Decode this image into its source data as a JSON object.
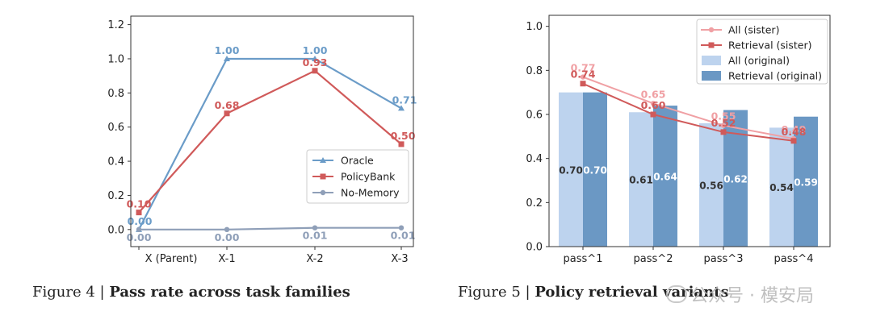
{
  "chart_data": [
    {
      "type": "line",
      "x": [
        "X (Parent)",
        "X-1",
        "X-2",
        "X-3"
      ],
      "ylim": [
        -0.1,
        1.25
      ],
      "yticks": [
        0.0,
        0.2,
        0.4,
        0.6,
        0.8,
        1.0,
        1.2
      ],
      "grid": false,
      "legend": "lower-right",
      "series": [
        {
          "name": "Oracle",
          "color": "#6b9cc8",
          "marker": "triangle",
          "values": [
            0.0,
            1.0,
            1.0,
            0.71
          ],
          "labels": [
            "0.00",
            "1.00",
            "1.00",
            "0.71"
          ]
        },
        {
          "name": "PolicyBank",
          "color": "#d05a5a",
          "marker": "square",
          "values": [
            0.1,
            0.68,
            0.93,
            0.5
          ],
          "labels": [
            "0.10",
            "0.68",
            "0.93",
            "0.50"
          ]
        },
        {
          "name": "No-Memory",
          "color": "#8f9fb8",
          "marker": "circle",
          "values": [
            0.0,
            0.0,
            0.01,
            0.01
          ],
          "labels": [
            "0.00",
            "0.00",
            "0.01",
            "0.01"
          ]
        }
      ]
    },
    {
      "type": "bar",
      "categories": [
        "pass^1",
        "pass^2",
        "pass^3",
        "pass^4"
      ],
      "ylim": [
        0.0,
        1.05
      ],
      "yticks": [
        0.0,
        0.2,
        0.4,
        0.6,
        0.8,
        1.0
      ],
      "grid": false,
      "legend": "top-right",
      "bar_series": [
        {
          "name": "All (original)",
          "color": "#bdd3ee",
          "values": [
            0.7,
            0.61,
            0.56,
            0.54
          ],
          "labels": [
            "0.70",
            "0.61",
            "0.56",
            "0.54"
          ]
        },
        {
          "name": "Retrieval (original)",
          "color": "#6b98c4",
          "values": [
            0.7,
            0.64,
            0.62,
            0.59
          ],
          "labels": [
            "0.70",
            "0.64",
            "0.62",
            "0.59"
          ]
        }
      ],
      "line_series": [
        {
          "name": "All (sister)",
          "color": "#f0a0a4",
          "marker": "circle",
          "values": [
            0.77,
            0.65,
            0.55,
            0.49
          ],
          "labels": [
            "0.77",
            "0.65",
            "0.55",
            "0.49"
          ]
        },
        {
          "name": "Retrieval (sister)",
          "color": "#d05a5a",
          "marker": "square",
          "values": [
            0.74,
            0.6,
            0.52,
            0.48
          ],
          "labels": [
            "0.74",
            "0.60",
            "0.52",
            "0.48"
          ]
        }
      ]
    }
  ],
  "captions": {
    "left_prefix": "Figure 4 | ",
    "left_title": "Pass rate across task families",
    "right_prefix": "Figure 5 | ",
    "right_title": "Policy retrieval variants"
  },
  "watermark": {
    "text": "公众号 · 模安局",
    "icon": "wechat-icon"
  }
}
